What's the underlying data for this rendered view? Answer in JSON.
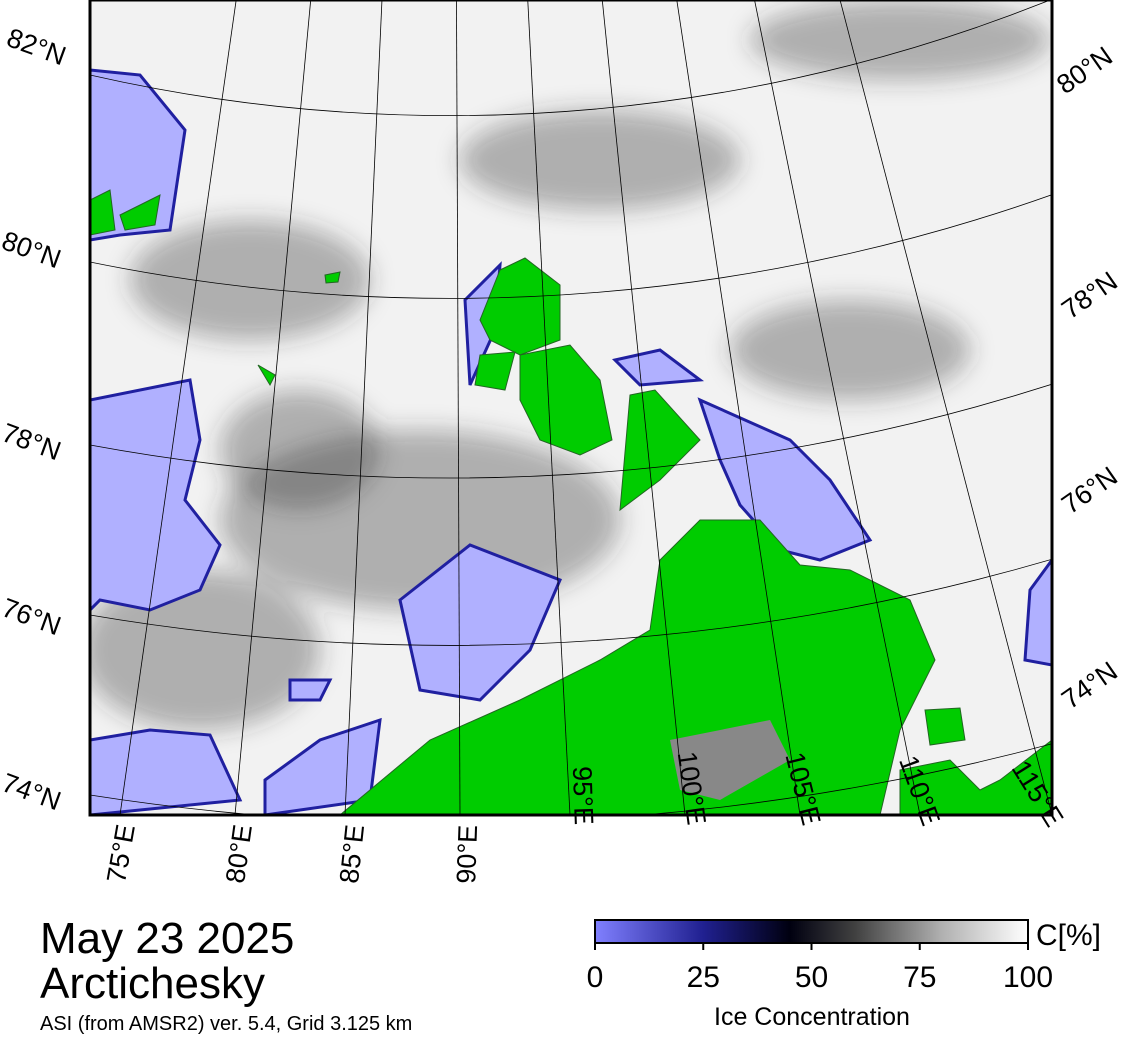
{
  "map": {
    "lat_labels_left": [
      "82°N",
      "80°N",
      "78°N",
      "76°N",
      "74°N"
    ],
    "lat_labels_right": [
      "80°N",
      "78°N",
      "76°N",
      "74°N"
    ],
    "lon_labels": [
      "75°E",
      "80°E",
      "85°E",
      "90°E",
      "95°E",
      "100°E",
      "105°E",
      "110°E",
      "115°E"
    ]
  },
  "title": {
    "date": "May 23 2025",
    "region": "Arctichesky",
    "source": "ASI (from AMSR2) ver. 5.4,  Grid 3.125 km"
  },
  "colorbar": {
    "unit": "C[%]",
    "label": "Ice Concentration",
    "lim": [
      0,
      100
    ],
    "ticks": [
      0,
      25,
      50,
      75,
      100
    ]
  }
}
